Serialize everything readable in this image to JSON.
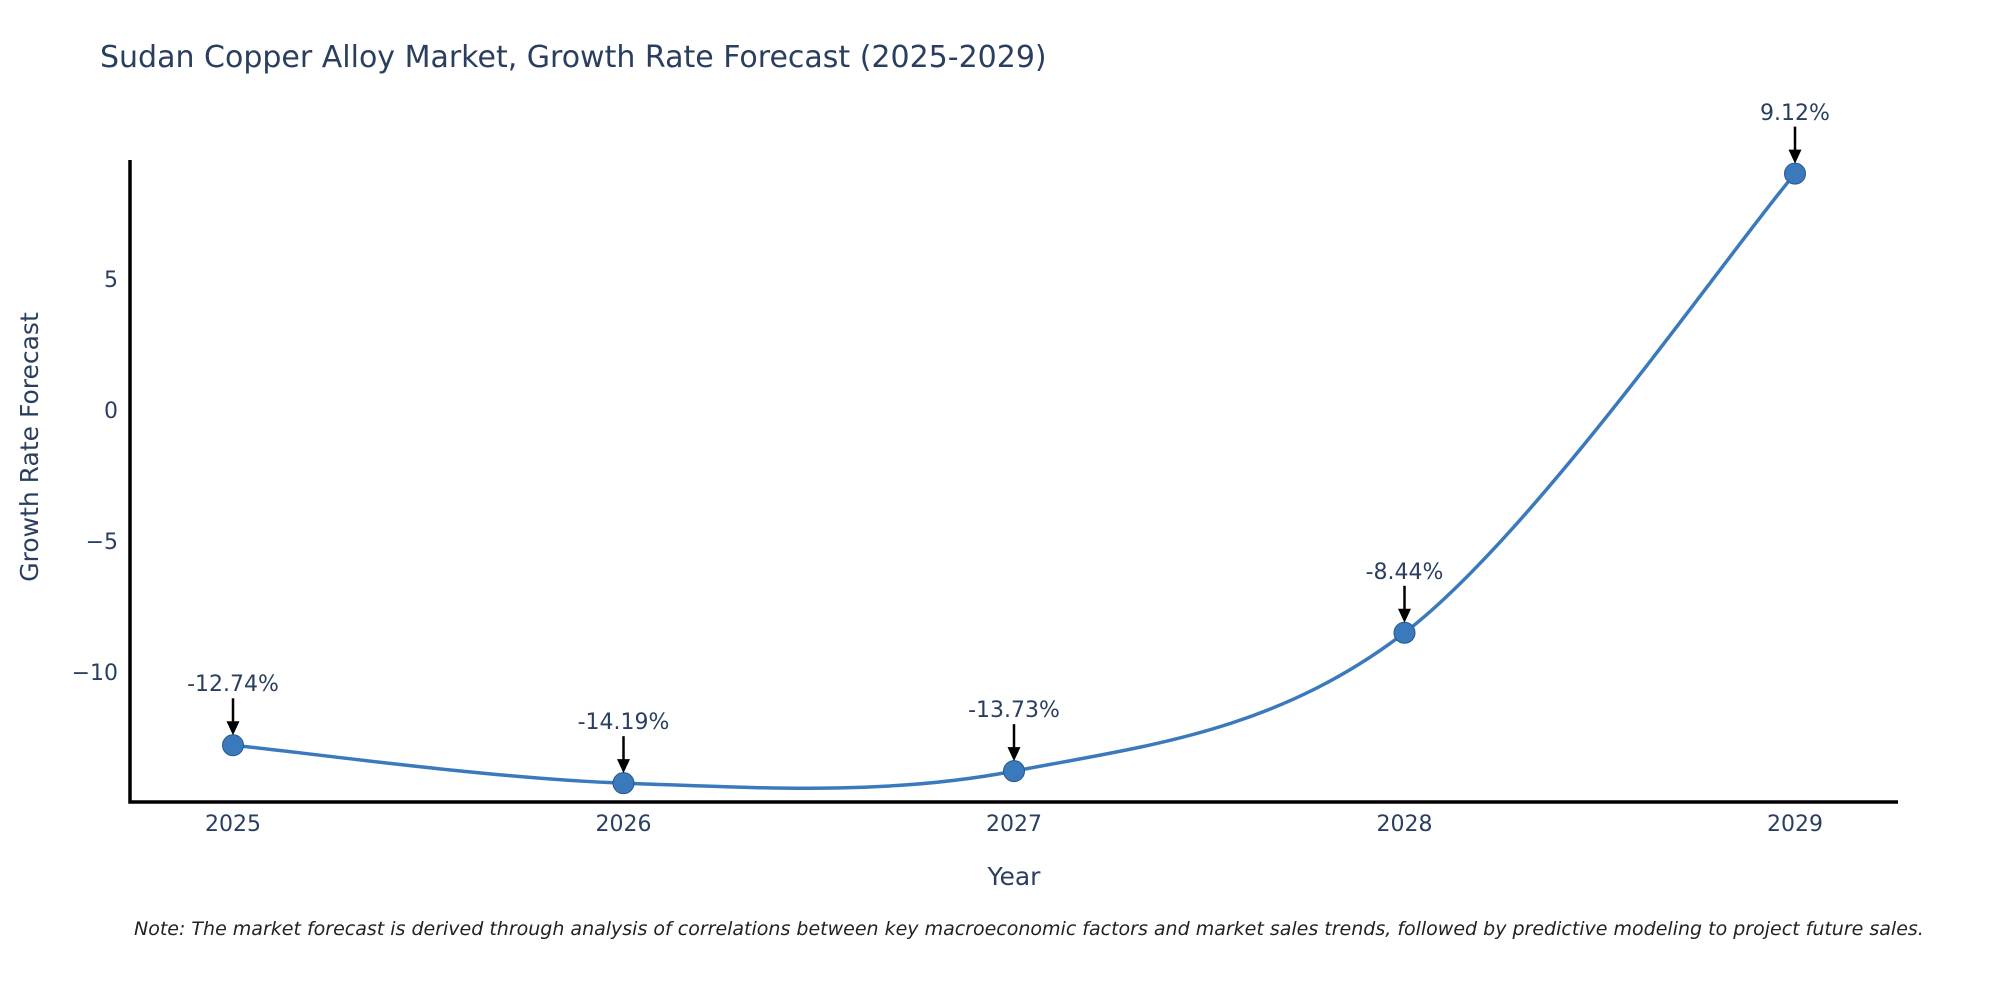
{
  "title": "Sudan Copper Alloy Market, Growth Rate Forecast (2025-2029)",
  "note": "Note: The market forecast is derived through analysis of correlations between key macroeconomic factors and market sales trends, followed by predictive modeling to project future sales.",
  "chart_data": {
    "type": "line",
    "title": "Sudan Copper Alloy Market, Growth Rate Forecast (2025-2029)",
    "xlabel": "Year",
    "ylabel": "Growth Rate Forecast",
    "line_shape": "spline",
    "grid": false,
    "legend": "none",
    "categories": [
      "2025",
      "2026",
      "2027",
      "2028",
      "2029"
    ],
    "values": [
      -12.74,
      -14.19,
      -13.73,
      -8.44,
      9.12
    ],
    "point_labels": [
      "-12.74%",
      "-14.19%",
      "-13.73%",
      "-8.44%",
      "9.12%"
    ],
    "yticks": {
      "values": [
        5,
        0,
        -5,
        -10
      ],
      "labels": [
        "5",
        "0",
        "−5",
        "−10"
      ]
    },
    "ylim": [
      -14.91,
      9.64
    ],
    "colors": {
      "line": "#3a7abc",
      "marker": "#3a7abc",
      "marker_edge": "#27588c",
      "axis": "#000000",
      "text": "#2a3f5f",
      "annotation_arrow": "#000000",
      "background": "#ffffff"
    }
  }
}
